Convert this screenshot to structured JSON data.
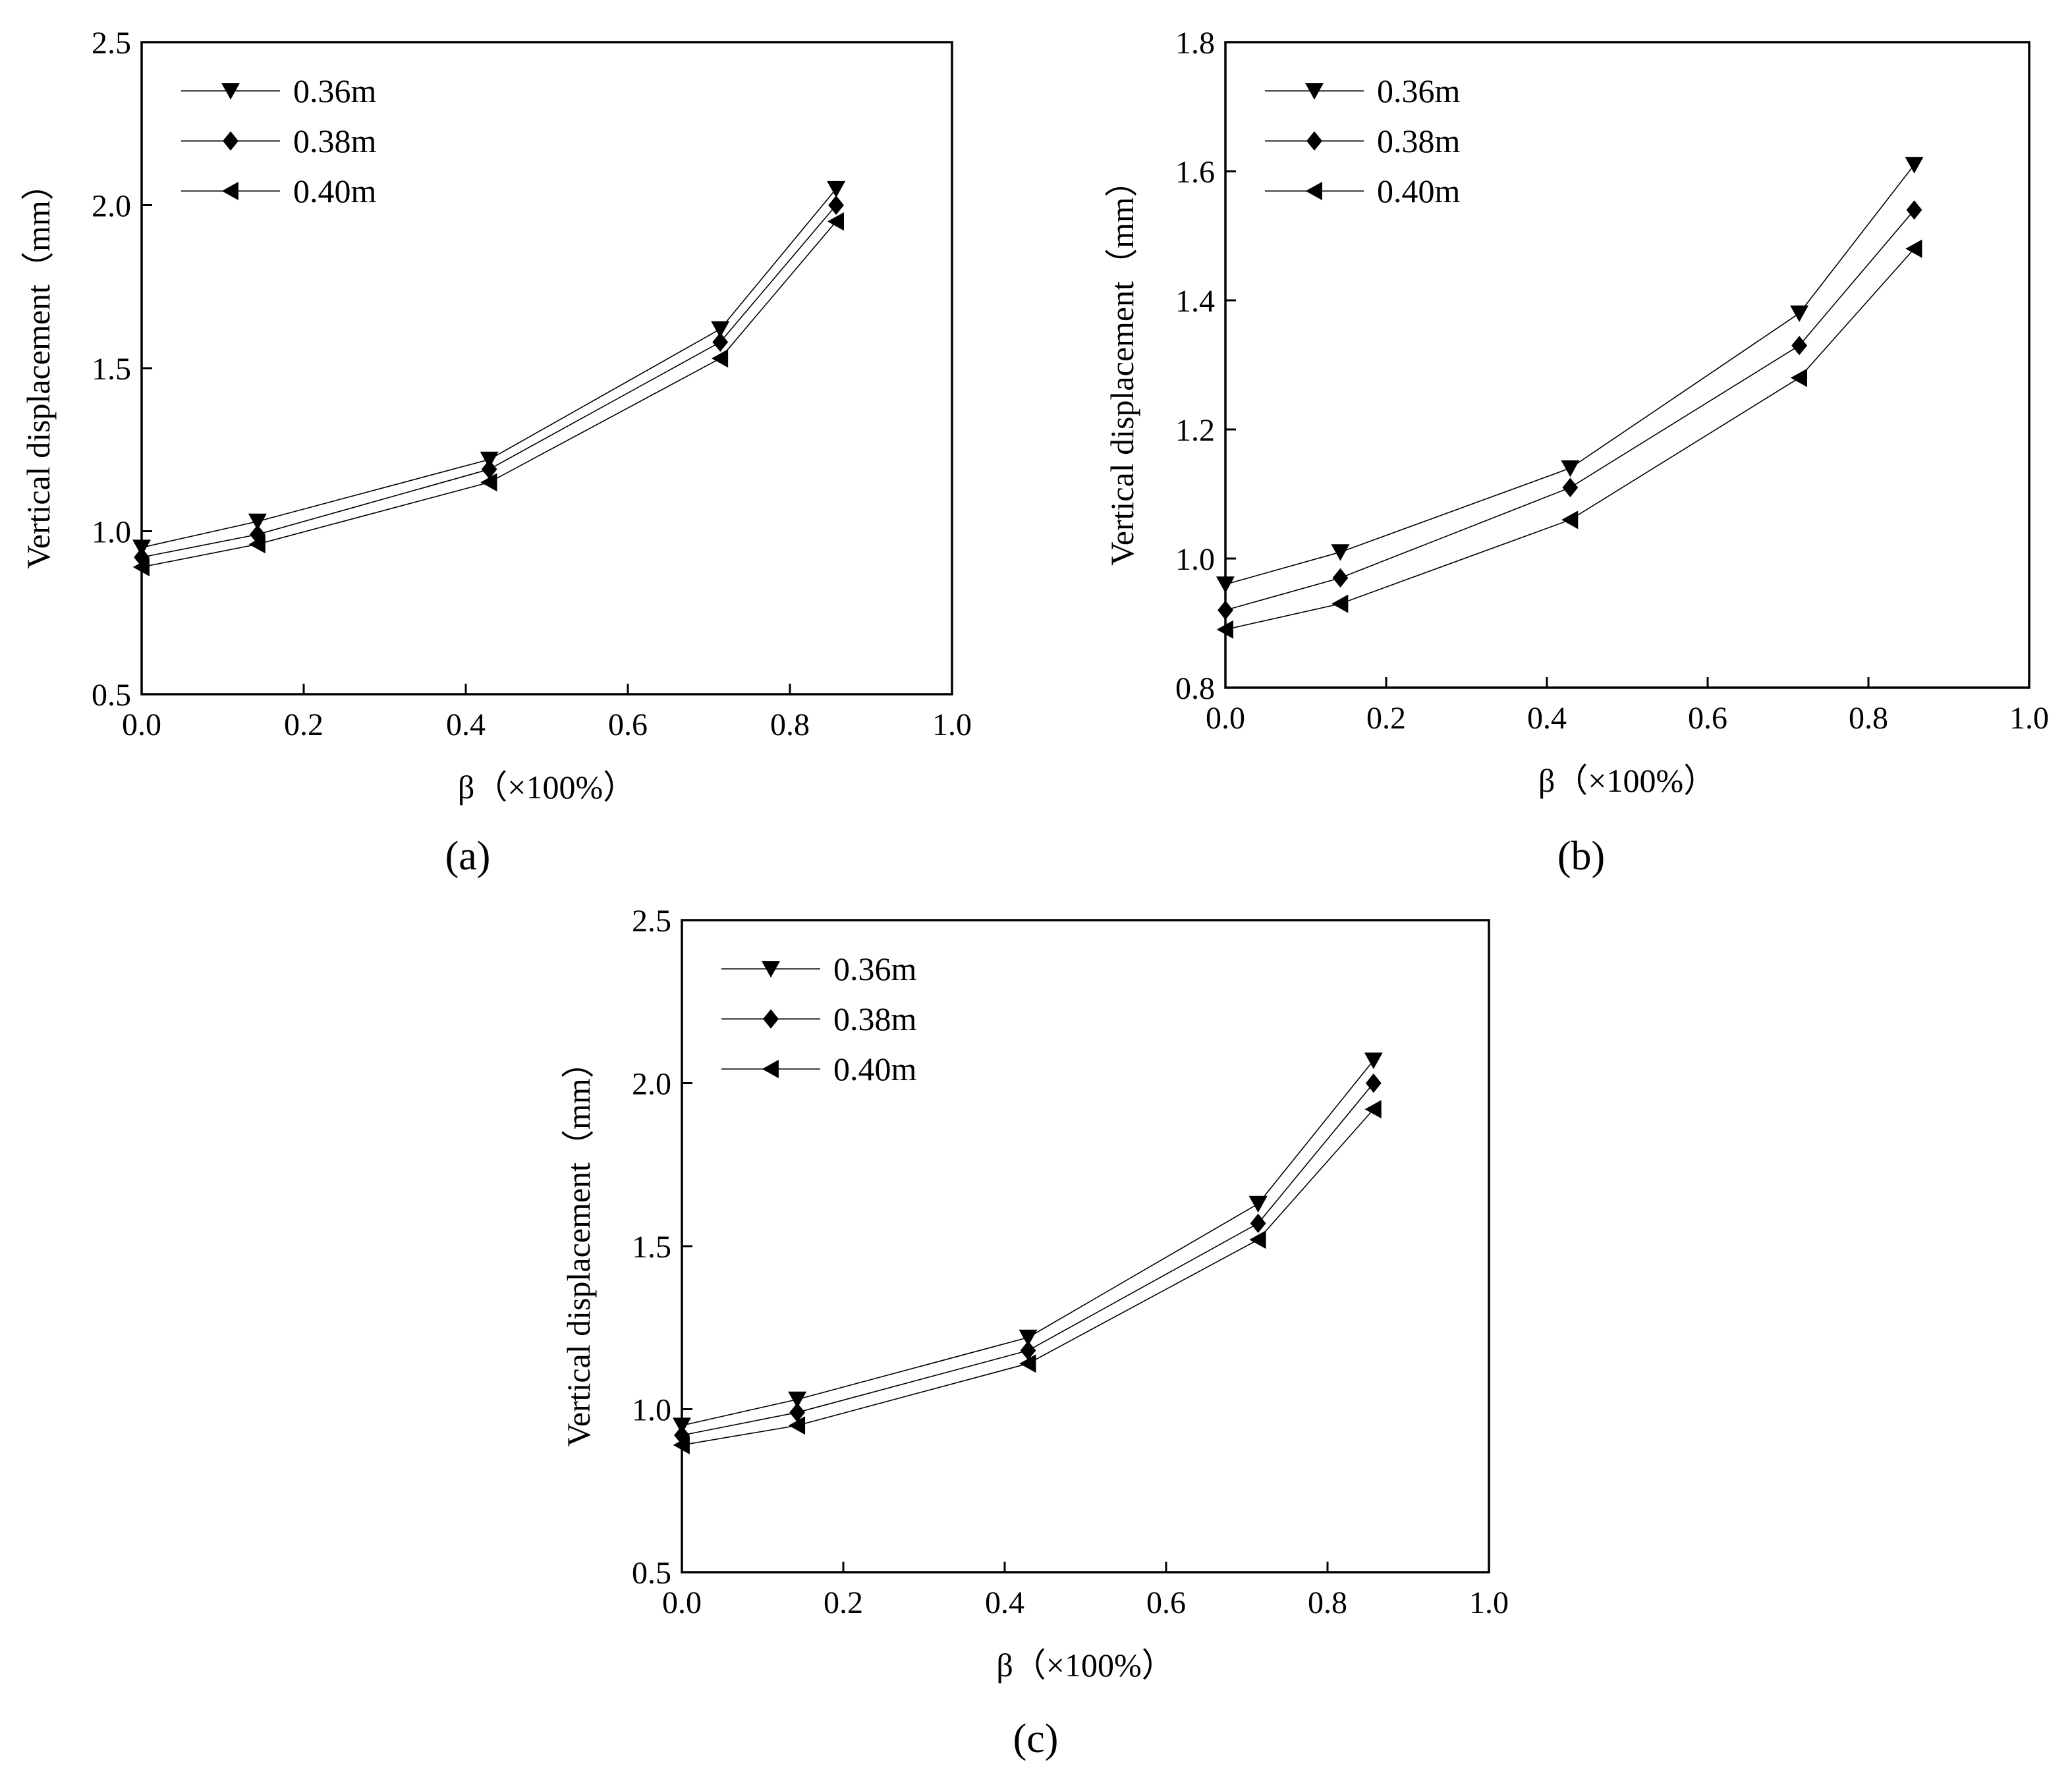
{
  "figure": {
    "panels": [
      "(a)",
      "(b)",
      "(c)"
    ]
  },
  "chart_data": [
    {
      "id": "a",
      "type": "line",
      "panel_label": "(a)",
      "title": "",
      "xlabel": "β（×100%）",
      "ylabel": "Vertical displacement（mm）",
      "xlim": [
        0.0,
        1.0
      ],
      "ylim": [
        0.5,
        2.5
      ],
      "xticks": [
        "0.0",
        "0.2",
        "0.4",
        "0.6",
        "0.8",
        "1.0"
      ],
      "yticks": [
        "0.5",
        "1.0",
        "1.5",
        "2.0",
        "2.5"
      ],
      "legend_position": "top-left",
      "x": [
        0.0,
        0.143,
        0.429,
        0.714,
        0.857
      ],
      "series": [
        {
          "name": "0.36m",
          "marker": "triangle-down",
          "values": [
            0.95,
            1.03,
            1.22,
            1.62,
            2.05
          ]
        },
        {
          "name": "0.38m",
          "marker": "diamond",
          "values": [
            0.92,
            0.99,
            1.19,
            1.58,
            2.0
          ]
        },
        {
          "name": "0.40m",
          "marker": "triangle-left",
          "values": [
            0.89,
            0.96,
            1.15,
            1.53,
            1.95
          ]
        }
      ]
    },
    {
      "id": "b",
      "type": "line",
      "panel_label": "(b)",
      "title": "",
      "xlabel": "β（×100%）",
      "ylabel": "Vertical displacement（mm）",
      "xlim": [
        0.0,
        1.0
      ],
      "ylim": [
        0.8,
        1.8
      ],
      "xticks": [
        "0.0",
        "0.2",
        "0.4",
        "0.6",
        "0.8",
        "1.0"
      ],
      "yticks": [
        "0.8",
        "1.0",
        "1.2",
        "1.4",
        "1.6",
        "1.8"
      ],
      "legend_position": "top-left",
      "x": [
        0.0,
        0.143,
        0.429,
        0.714,
        0.857
      ],
      "series": [
        {
          "name": "0.36m",
          "marker": "triangle-down",
          "values": [
            0.96,
            1.01,
            1.14,
            1.38,
            1.61
          ]
        },
        {
          "name": "0.38m",
          "marker": "diamond",
          "values": [
            0.92,
            0.97,
            1.11,
            1.33,
            1.54
          ]
        },
        {
          "name": "0.40m",
          "marker": "triangle-left",
          "values": [
            0.89,
            0.93,
            1.06,
            1.28,
            1.48
          ]
        }
      ]
    },
    {
      "id": "c",
      "type": "line",
      "panel_label": "(c)",
      "title": "",
      "xlabel": "β（×100%）",
      "ylabel": "Vertical displacement（mm）",
      "xlim": [
        0.0,
        1.0
      ],
      "ylim": [
        0.5,
        2.5
      ],
      "xticks": [
        "0.0",
        "0.2",
        "0.4",
        "0.6",
        "0.8",
        "1.0"
      ],
      "yticks": [
        "0.5",
        "1.0",
        "1.5",
        "2.0",
        "2.5"
      ],
      "legend_position": "top-left",
      "x": [
        0.0,
        0.143,
        0.429,
        0.714,
        0.857
      ],
      "series": [
        {
          "name": "0.36m",
          "marker": "triangle-down",
          "values": [
            0.95,
            1.03,
            1.22,
            1.63,
            2.07
          ]
        },
        {
          "name": "0.38m",
          "marker": "diamond",
          "values": [
            0.92,
            0.99,
            1.18,
            1.57,
            2.0
          ]
        },
        {
          "name": "0.40m",
          "marker": "triangle-left",
          "values": [
            0.89,
            0.95,
            1.14,
            1.52,
            1.92
          ]
        }
      ]
    }
  ]
}
